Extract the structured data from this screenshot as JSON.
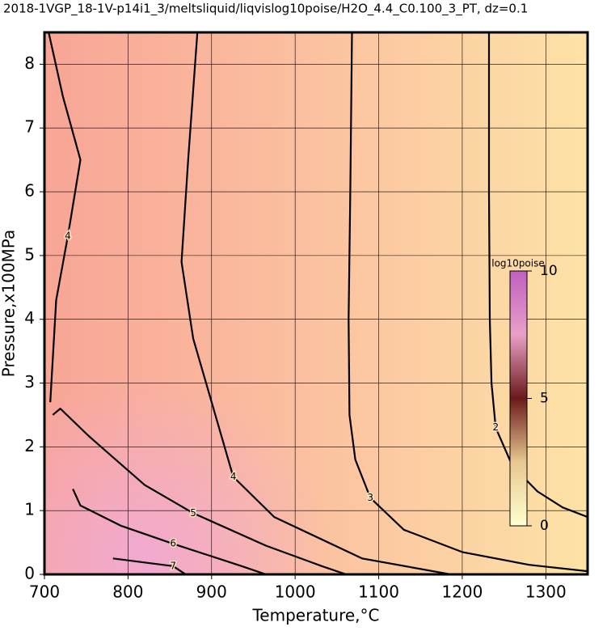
{
  "chart_data": {
    "type": "contour",
    "title": "2018-1VGP_18-1V-p14i1_3/meltsliquid/liqvislog10poise/H2O_4.4_C0.100_3_PT, dz=0.1",
    "x_label": "Temperature,°C",
    "y_label": "Pressure,x100MPa",
    "xlim": [
      700,
      1350
    ],
    "ylim": [
      0,
      8.5
    ],
    "xticks": [
      700,
      800,
      900,
      1000,
      1100,
      1200,
      1300
    ],
    "yticks": [
      0,
      1,
      2,
      3,
      4,
      5,
      6,
      7,
      8
    ],
    "grid": true,
    "contours": [
      {
        "level": 2,
        "x": [
          1232,
          1232,
          1233,
          1235,
          1240,
          1260,
          1290,
          1320,
          1350
        ],
        "y": [
          8.5,
          6,
          4,
          3,
          2.3,
          1.7,
          1.3,
          1.05,
          0.9
        ]
      },
      {
        "level": 3,
        "x": [
          1068,
          1066,
          1064,
          1065,
          1072,
          1090,
          1130,
          1200,
          1280,
          1350
        ],
        "y": [
          8.5,
          6,
          4,
          2.5,
          1.8,
          1.2,
          0.7,
          0.35,
          0.15,
          0.05
        ]
      },
      {
        "level": 4,
        "x": [
          883,
          872,
          864,
          878,
          926,
          975,
          1080,
          1186
        ],
        "y": [
          8.5,
          6.5,
          4.9,
          3.7,
          1.53,
          0.9,
          0.25,
          0
        ]
      },
      {
        "level": 4,
        "x": [
          705,
          722,
          743,
          728,
          714,
          707
        ],
        "y": [
          8.5,
          7.5,
          6.5,
          5.3,
          4.3,
          2.7
        ]
      },
      {
        "level": 5,
        "x": [
          710,
          719,
          753,
          820,
          878,
          965,
          1032,
          1061
        ],
        "y": [
          2.5,
          2.6,
          2.17,
          1.4,
          0.96,
          0.45,
          0.13,
          0
        ]
      },
      {
        "level": 6,
        "x": [
          734,
          743,
          792,
          854,
          936,
          965
        ],
        "y": [
          1.34,
          1.08,
          0.76,
          0.48,
          0.13,
          0
        ]
      },
      {
        "level": 7,
        "x": [
          782,
          854,
          869
        ],
        "y": [
          0.25,
          0.13,
          0
        ]
      }
    ],
    "colorbar": {
      "label": "log10poise",
      "lim": [
        0,
        10
      ],
      "ticks": [
        0,
        5,
        10
      ]
    }
  }
}
